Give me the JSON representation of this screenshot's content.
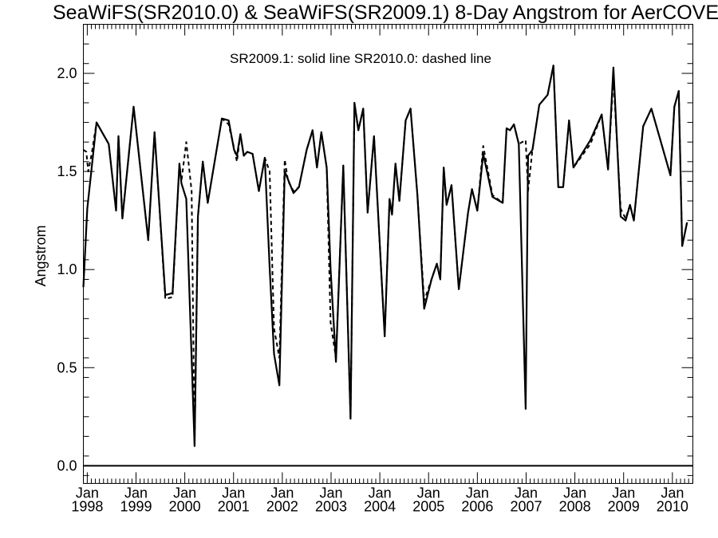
{
  "chart_data": {
    "type": "line",
    "title": "SeaWiFS(SR2010.0) & SeaWiFS(SR2009.1) 8-Day Angstrom for AerCOVE",
    "annotation": "SR2009.1: solid line   SR2010.0: dashed line",
    "ylabel": "Angstrom",
    "xlabel": "",
    "x_unit": "year",
    "xlim": [
      1997.92,
      2010.42
    ],
    "ylim": [
      -0.09,
      2.25
    ],
    "y_ticks": [
      0.0,
      0.5,
      1.0,
      1.5,
      2.0
    ],
    "y_tick_labels": [
      "0.0",
      "0.5",
      "1.0",
      "1.5",
      "2.0"
    ],
    "x_ticks": [
      {
        "x": 1998,
        "top": "Jan",
        "bottom": "1998"
      },
      {
        "x": 1999,
        "top": "Jan",
        "bottom": "1999"
      },
      {
        "x": 2000,
        "top": "Jan",
        "bottom": "2000"
      },
      {
        "x": 2001,
        "top": "Jan",
        "bottom": "2001"
      },
      {
        "x": 2002,
        "top": "Jan",
        "bottom": "2002"
      },
      {
        "x": 2003,
        "top": "Jan",
        "bottom": "2003"
      },
      {
        "x": 2004,
        "top": "Jan",
        "bottom": "2004"
      },
      {
        "x": 2005,
        "top": "Jan",
        "bottom": "2005"
      },
      {
        "x": 2006,
        "top": "Jan",
        "bottom": "2006"
      },
      {
        "x": 2007,
        "top": "Jan",
        "bottom": "2007"
      },
      {
        "x": 2008,
        "top": "Jan",
        "bottom": "2008"
      },
      {
        "x": 2009,
        "top": "Jan",
        "bottom": "2009"
      },
      {
        "x": 2010,
        "top": "Jan",
        "bottom": "2010"
      }
    ],
    "reference_line_y": 0.0,
    "series": [
      {
        "name": "SR2009.1",
        "style": "solid",
        "x": [
          1997.92,
          1998.0,
          1998.19,
          1998.44,
          1998.59,
          1998.64,
          1998.72,
          1998.95,
          1999.25,
          1999.38,
          1999.6,
          1999.75,
          1999.89,
          1999.93,
          2000.03,
          2000.2,
          2000.27,
          2000.37,
          2000.47,
          2000.76,
          2000.9,
          2001.01,
          2001.07,
          2001.14,
          2001.21,
          2001.28,
          2001.39,
          2001.52,
          2001.64,
          2001.74,
          2001.83,
          2001.94,
          2002.05,
          2002.23,
          2002.34,
          2002.5,
          2002.62,
          2002.71,
          2002.8,
          2002.91,
          2002.99,
          2003.1,
          2003.25,
          2003.4,
          2003.48,
          2003.56,
          2003.66,
          2003.75,
          2003.88,
          2004.1,
          2004.2,
          2004.25,
          2004.32,
          2004.4,
          2004.53,
          2004.63,
          2004.77,
          2004.91,
          2005.06,
          2005.17,
          2005.24,
          2005.31,
          2005.37,
          2005.47,
          2005.62,
          2005.81,
          2005.89,
          2006.0,
          2006.12,
          2006.31,
          2006.52,
          2006.6,
          2006.67,
          2006.75,
          2006.85,
          2006.99,
          2007.04,
          2007.13,
          2007.27,
          2007.44,
          2007.56,
          2007.66,
          2007.76,
          2007.88,
          2007.97,
          2008.32,
          2008.55,
          2008.68,
          2008.79,
          2008.94,
          2009.04,
          2009.13,
          2009.21,
          2009.4,
          2009.57,
          2009.96,
          2010.04,
          2010.13,
          2010.2,
          2010.3
        ],
        "y": [
          0.91,
          1.31,
          1.75,
          1.64,
          1.3,
          1.68,
          1.26,
          1.83,
          1.15,
          1.7,
          0.87,
          0.88,
          1.54,
          1.44,
          1.36,
          0.1,
          1.27,
          1.55,
          1.34,
          1.77,
          1.76,
          1.61,
          1.58,
          1.69,
          1.58,
          1.6,
          1.59,
          1.4,
          1.57,
          1.01,
          0.57,
          0.41,
          1.5,
          1.39,
          1.42,
          1.61,
          1.71,
          1.52,
          1.7,
          1.52,
          1.0,
          0.53,
          1.53,
          0.24,
          1.85,
          1.71,
          1.82,
          1.29,
          1.68,
          0.66,
          1.36,
          1.28,
          1.54,
          1.35,
          1.76,
          1.82,
          1.38,
          0.8,
          0.95,
          1.03,
          0.95,
          1.52,
          1.33,
          1.43,
          0.9,
          1.29,
          1.41,
          1.3,
          1.59,
          1.37,
          1.34,
          1.72,
          1.71,
          1.74,
          1.64,
          0.29,
          1.58,
          1.61,
          1.84,
          1.89,
          2.04,
          1.42,
          1.42,
          1.76,
          1.52,
          1.66,
          1.79,
          1.51,
          2.03,
          1.27,
          1.25,
          1.33,
          1.25,
          1.73,
          1.82,
          1.48,
          1.83,
          1.91,
          1.12,
          1.24
        ]
      },
      {
        "name": "SR2010.0",
        "style": "dashed",
        "x": [
          1997.92,
          1997.98,
          1998.02,
          1998.09,
          1998.19,
          1998.44,
          1998.59,
          1998.64,
          1998.72,
          1998.95,
          1999.25,
          1999.38,
          1999.6,
          1999.75,
          1999.89,
          1999.93,
          2000.03,
          2000.14,
          2000.2,
          2000.27,
          2000.37,
          2000.47,
          2000.76,
          2000.9,
          2001.01,
          2001.07,
          2001.14,
          2001.21,
          2001.28,
          2001.39,
          2001.52,
          2001.64,
          2001.74,
          2001.83,
          2001.94,
          2002.05,
          2002.12,
          2002.23,
          2002.34,
          2002.5,
          2002.62,
          2002.71,
          2002.8,
          2002.91,
          2002.99,
          2003.1,
          2003.25,
          2003.4,
          2003.48,
          2003.56,
          2003.66,
          2003.75,
          2003.88,
          2004.1,
          2004.2,
          2004.25,
          2004.32,
          2004.4,
          2004.53,
          2004.63,
          2004.77,
          2004.91,
          2005.06,
          2005.17,
          2005.24,
          2005.31,
          2005.37,
          2005.47,
          2005.62,
          2005.81,
          2005.89,
          2006.0,
          2006.12,
          2006.31,
          2006.52,
          2006.6,
          2006.67,
          2006.75,
          2006.85,
          2006.99,
          2007.04,
          2007.13,
          2007.27,
          2007.44,
          2007.56,
          2007.66,
          2007.76,
          2007.88,
          2007.97,
          2008.32,
          2008.55,
          2008.68,
          2008.79,
          2008.94,
          2009.04,
          2009.13,
          2009.21,
          2009.4,
          2009.57,
          2009.96,
          2010.04,
          2010.13,
          2010.2,
          2010.3
        ],
        "y": [
          1.61,
          1.6,
          1.5,
          1.59,
          1.75,
          1.64,
          1.3,
          1.68,
          1.26,
          1.83,
          1.15,
          1.7,
          0.85,
          0.86,
          1.54,
          1.45,
          1.65,
          1.4,
          0.1,
          1.27,
          1.55,
          1.34,
          1.77,
          1.74,
          1.62,
          1.55,
          1.69,
          1.58,
          1.6,
          1.59,
          1.4,
          1.57,
          1.5,
          0.7,
          0.55,
          1.56,
          1.45,
          1.4,
          1.42,
          1.61,
          1.71,
          1.52,
          1.7,
          1.52,
          0.73,
          0.55,
          1.53,
          0.24,
          1.85,
          1.71,
          1.82,
          1.29,
          1.68,
          0.66,
          1.36,
          1.28,
          1.54,
          1.35,
          1.76,
          1.82,
          1.38,
          0.84,
          0.95,
          1.03,
          0.95,
          1.52,
          1.33,
          1.43,
          0.9,
          1.29,
          1.41,
          1.3,
          1.63,
          1.38,
          1.34,
          1.72,
          1.71,
          1.74,
          1.64,
          1.66,
          1.4,
          1.61,
          1.84,
          1.89,
          2.04,
          1.42,
          1.42,
          1.76,
          1.52,
          1.64,
          1.79,
          1.51,
          1.98,
          1.31,
          1.26,
          1.33,
          1.25,
          1.73,
          1.82,
          1.48,
          1.83,
          1.91,
          1.12,
          1.24
        ]
      }
    ]
  }
}
